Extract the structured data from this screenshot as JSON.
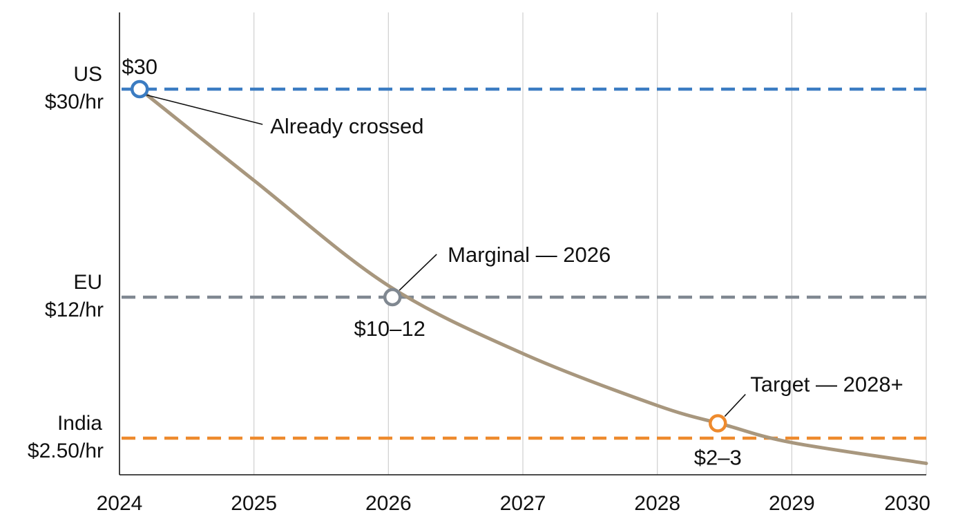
{
  "chart_data": {
    "type": "line",
    "title": "",
    "xlabel": "",
    "ylabel": "",
    "xlim": [
      2024,
      2030
    ],
    "x_ticks": [
      "2024",
      "2025",
      "2026",
      "2027",
      "2028",
      "2029",
      "2030"
    ],
    "grid": "vertical",
    "series": [
      {
        "color": "#a8977e",
        "points": [
          {
            "x": 2024.15,
            "y": 30
          },
          {
            "x": 2025.0,
            "y": 22.1
          },
          {
            "x": 2026.0,
            "y": 13.0
          },
          {
            "x": 2027.0,
            "y": 8.2
          },
          {
            "x": 2028.0,
            "y": 4.7
          },
          {
            "x": 2028.5,
            "y": 3.4
          },
          {
            "x": 2029.0,
            "y": 2.2
          },
          {
            "x": 2030.0,
            "y": 0.8
          }
        ]
      }
    ],
    "reference_lines": [
      {
        "region": "US",
        "rate": "$30/hr",
        "y": 30,
        "color": "#3b7cc2"
      },
      {
        "region": "EU",
        "rate": "$12/hr",
        "y": 12,
        "color": "#808891"
      },
      {
        "region": "India",
        "rate": "$2.50/hr",
        "y": 2.5,
        "color": "#ee8a2d"
      }
    ],
    "markers": [
      {
        "x": 2024.15,
        "y": 30,
        "value_label": "$30",
        "annotation": "Already crossed",
        "color": "#3b7cc2"
      },
      {
        "x": 2026.03,
        "y": 12,
        "value_label": "$10–12",
        "annotation": "Marginal — 2026",
        "color": "#808891"
      },
      {
        "x": 2028.45,
        "y": 3.5,
        "value_label": "$2–3",
        "annotation": "Target — 2028+",
        "color": "#ee8a2d"
      }
    ]
  }
}
